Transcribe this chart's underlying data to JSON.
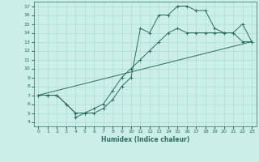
{
  "bg_color": "#cceee8",
  "grid_color": "#aaddcc",
  "line_color": "#2d6e5e",
  "xlabel": "Humidex (Indice chaleur)",
  "xlim": [
    -0.5,
    23.5
  ],
  "ylim": [
    3.5,
    17.5
  ],
  "xticks": [
    0,
    1,
    2,
    3,
    4,
    5,
    6,
    7,
    8,
    9,
    10,
    11,
    12,
    13,
    14,
    15,
    16,
    17,
    18,
    19,
    20,
    21,
    22,
    23
  ],
  "yticks": [
    4,
    5,
    6,
    7,
    8,
    9,
    10,
    11,
    12,
    13,
    14,
    15,
    16,
    17
  ],
  "line1_x": [
    0,
    1,
    2,
    3,
    4,
    4,
    5,
    6,
    7,
    8,
    9,
    10,
    11,
    12,
    13,
    14,
    15,
    16,
    17,
    18,
    19,
    20,
    21,
    22,
    23
  ],
  "line1_y": [
    7,
    7,
    7,
    6,
    5,
    4.5,
    5,
    5,
    5.5,
    6.5,
    8,
    9,
    14.5,
    14,
    16,
    16,
    17,
    17,
    16.5,
    16.5,
    14.5,
    14,
    14,
    15,
    13
  ],
  "line2_x": [
    0,
    1,
    2,
    3,
    4,
    5,
    6,
    7,
    8,
    9,
    10,
    11,
    12,
    13,
    14,
    15,
    16,
    17,
    18,
    19,
    20,
    21,
    22,
    23
  ],
  "line2_y": [
    7,
    7,
    7,
    6,
    5,
    5,
    5.5,
    6,
    7.5,
    9,
    10,
    11,
    12,
    13,
    14,
    14.5,
    14,
    14,
    14,
    14,
    14,
    14,
    13,
    13
  ],
  "line3_x": [
    0,
    23
  ],
  "line3_y": [
    7,
    13
  ],
  "marker": "+"
}
